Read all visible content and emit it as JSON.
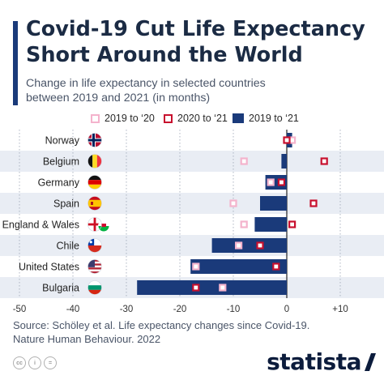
{
  "header": {
    "title_line1": "Covid-19 Cut Life Expectancy",
    "title_line2": "Short Around the World",
    "subtitle_line1": "Change in life expectancy in selected countries",
    "subtitle_line2": "between 2019 and 2021 (in months)"
  },
  "legend": {
    "item_2020": "2019 to ‘20",
    "item_2021": "2020 to ‘21",
    "item_total": "2019 to ‘21"
  },
  "colors": {
    "bar": "#1a3a7a",
    "marker_2020": "#f4b3cc",
    "marker_2021": "#c8102e",
    "band": "#e9edf4",
    "title": "#1b2b44"
  },
  "chart_data": {
    "type": "bar",
    "orientation": "horizontal",
    "categories": [
      "Norway",
      "Belgium",
      "Germany",
      "Spain",
      "England & Wales",
      "Chile",
      "United States",
      "Bulgaria"
    ],
    "flags": [
      "norway-flag-icon",
      "belgium-flag-icon",
      "germany-flag-icon",
      "spain-flag-icon",
      "england-wales-flag-icon",
      "chile-flag-icon",
      "usa-flag-icon",
      "bulgaria-flag-icon"
    ],
    "series": [
      {
        "name": "2019 to ‘21",
        "kind": "bar",
        "values": [
          1,
          -1,
          -4,
          -5,
          -6,
          -14,
          -18,
          -28
        ]
      },
      {
        "name": "2019 to ‘20",
        "kind": "marker",
        "values": [
          1,
          -8,
          -3,
          -10,
          -8,
          -9,
          -17,
          -12
        ]
      },
      {
        "name": "2020 to ‘21",
        "kind": "marker",
        "values": [
          0,
          7,
          -1,
          5,
          1,
          -5,
          -2,
          -17
        ]
      }
    ],
    "xlim": [
      -50,
      12
    ],
    "x_ticks": [
      -50,
      -40,
      -30,
      -20,
      -10,
      0,
      10
    ],
    "x_tick_labels": [
      "-50",
      "-40",
      "-30",
      "-20",
      "-10",
      "0",
      "+10"
    ],
    "grid": true
  },
  "source": {
    "line1": "Source: Schöley et al. Life expectancy changes since Covid-19.",
    "line2": "Nature Human Behaviour. 2022"
  },
  "footer": {
    "cc_icons": [
      "cc-icon",
      "by-icon",
      "nd-icon"
    ],
    "cc_labels": [
      "cc",
      "i",
      "="
    ],
    "brand": "statista"
  }
}
